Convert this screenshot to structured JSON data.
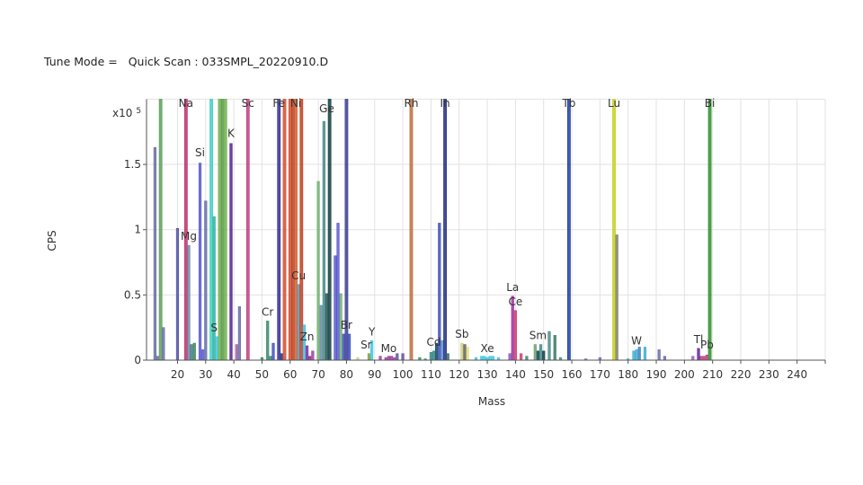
{
  "header": {
    "tune_mode_label": "Tune Mode =",
    "scan_label": "Quick Scan : 033SMPL_20220910.D"
  },
  "chart_data": {
    "type": "bar",
    "title": "",
    "xlabel": "Mass",
    "ylabel": "CPS",
    "y_multiplier": "x10",
    "y_multiplier_exp": "5",
    "xlim": [
      9,
      250
    ],
    "ylim": [
      0,
      2
    ],
    "xticks": [
      20,
      30,
      40,
      50,
      60,
      70,
      80,
      90,
      100,
      110,
      120,
      130,
      140,
      150,
      160,
      170,
      180,
      190,
      200,
      210,
      220,
      230,
      240
    ],
    "yticks": [
      {
        "v": 0,
        "label": "0"
      },
      {
        "v": 0.5,
        "label": "0.5"
      },
      {
        "v": 1,
        "label": "1"
      },
      {
        "v": 1.5,
        "label": "1.5"
      }
    ],
    "grid": true,
    "peaks": [
      {
        "m": 12,
        "v": 1.63,
        "c": "#6a6fa8"
      },
      {
        "m": 13,
        "v": 0.03,
        "c": "#6a6fa8"
      },
      {
        "m": 14,
        "v": 2.5,
        "c": "#5aa05a"
      },
      {
        "m": 15,
        "v": 0.25,
        "c": "#6a6fa8"
      },
      {
        "m": 20,
        "v": 1.01,
        "c": "#5555aa"
      },
      {
        "m": 23,
        "v": 2.5,
        "c": "#c0306a"
      },
      {
        "m": 24,
        "v": 0.88,
        "c": "#6a8aa8"
      },
      {
        "m": 25,
        "v": 0.12,
        "c": "#4a7a8a"
      },
      {
        "m": 26,
        "v": 0.13,
        "c": "#3a8a5a"
      },
      {
        "m": 28,
        "v": 1.51,
        "c": "#5a5ad0"
      },
      {
        "m": 29,
        "v": 0.08,
        "c": "#5a5ad0"
      },
      {
        "m": 30,
        "v": 1.22,
        "c": "#6a6fa8"
      },
      {
        "m": 32,
        "v": 2.5,
        "c": "#40d0c0"
      },
      {
        "m": 33,
        "v": 1.1,
        "c": "#30b0a0"
      },
      {
        "m": 34,
        "v": 0.18,
        "c": "#40c8e0"
      },
      {
        "m": 35,
        "v": 2.5,
        "c": "#70b050"
      },
      {
        "m": 36,
        "v": 2.5,
        "c": "#5a9a4a"
      },
      {
        "m": 37,
        "v": 2.5,
        "c": "#70b050"
      },
      {
        "m": 39,
        "v": 1.66,
        "c": "#502090"
      },
      {
        "m": 41,
        "v": 0.12,
        "c": "#a060a0"
      },
      {
        "m": 42,
        "v": 0.41,
        "c": "#6a6fa8"
      },
      {
        "m": 45,
        "v": 2.5,
        "c": "#c04080"
      },
      {
        "m": 50,
        "v": 0.02,
        "c": "#3a8a6a"
      },
      {
        "m": 52,
        "v": 0.3,
        "c": "#3a8a6a"
      },
      {
        "m": 53,
        "v": 0.03,
        "c": "#3a8a6a"
      },
      {
        "m": 54,
        "v": 0.13,
        "c": "#4050c0"
      },
      {
        "m": 56,
        "v": 2.5,
        "c": "#303090"
      },
      {
        "m": 57,
        "v": 0.05,
        "c": "#303090"
      },
      {
        "m": 58,
        "v": 2.5,
        "c": "#d05030"
      },
      {
        "m": 60,
        "v": 2.5,
        "c": "#d05030"
      },
      {
        "m": 61,
        "v": 2.5,
        "c": "#c04020"
      },
      {
        "m": 62,
        "v": 2.5,
        "c": "#d06030"
      },
      {
        "m": 63,
        "v": 0.58,
        "c": "#6090b0"
      },
      {
        "m": 64,
        "v": 2.5,
        "c": "#c04020"
      },
      {
        "m": 65,
        "v": 0.27,
        "c": "#40c0e0"
      },
      {
        "m": 66,
        "v": 0.11,
        "c": "#8030a0"
      },
      {
        "m": 67,
        "v": 0.03,
        "c": "#8030a0"
      },
      {
        "m": 68,
        "v": 0.07,
        "c": "#a040a0"
      },
      {
        "m": 70,
        "v": 1.37,
        "c": "#70b070"
      },
      {
        "m": 71,
        "v": 0.42,
        "c": "#6a8aa8"
      },
      {
        "m": 72,
        "v": 1.83,
        "c": "#4a8a8a"
      },
      {
        "m": 73,
        "v": 0.51,
        "c": "#2a5a5a"
      },
      {
        "m": 74,
        "v": 2.5,
        "c": "#104040"
      },
      {
        "m": 76,
        "v": 0.8,
        "c": "#5a5ad0"
      },
      {
        "m": 77,
        "v": 1.05,
        "c": "#5a5ad0"
      },
      {
        "m": 78,
        "v": 0.51,
        "c": "#70b070"
      },
      {
        "m": 79,
        "v": 0.2,
        "c": "#4050c0"
      },
      {
        "m": 80,
        "v": 2.5,
        "c": "#404090"
      },
      {
        "m": 81,
        "v": 0.2,
        "c": "#4050c0"
      },
      {
        "m": 84,
        "v": 0.02,
        "c": "#d0d080"
      },
      {
        "m": 88,
        "v": 0.05,
        "c": "#80a040"
      },
      {
        "m": 89,
        "v": 0.15,
        "c": "#40c8e0"
      },
      {
        "m": 92,
        "v": 0.03,
        "c": "#a040a0"
      },
      {
        "m": 94,
        "v": 0.02,
        "c": "#a040a0"
      },
      {
        "m": 95,
        "v": 0.03,
        "c": "#a040a0"
      },
      {
        "m": 96,
        "v": 0.03,
        "c": "#a040a0"
      },
      {
        "m": 97,
        "v": 0.02,
        "c": "#a040a0"
      },
      {
        "m": 98,
        "v": 0.05,
        "c": "#6050a0"
      },
      {
        "m": 100,
        "v": 0.05,
        "c": "#6050a0"
      },
      {
        "m": 103,
        "v": 2.5,
        "c": "#c07040"
      },
      {
        "m": 106,
        "v": 0.02,
        "c": "#3a8a6a"
      },
      {
        "m": 108,
        "v": 0.01,
        "c": "#3a8a6a"
      },
      {
        "m": 110,
        "v": 0.06,
        "c": "#3a8a8a"
      },
      {
        "m": 111,
        "v": 0.07,
        "c": "#3a8a8a"
      },
      {
        "m": 112,
        "v": 0.13,
        "c": "#104a5a"
      },
      {
        "m": 113,
        "v": 1.05,
        "c": "#4050c0"
      },
      {
        "m": 114,
        "v": 0.15,
        "c": "#6090d0"
      },
      {
        "m": 115,
        "v": 2.5,
        "c": "#203080"
      },
      {
        "m": 116,
        "v": 0.05,
        "c": "#3a6a6a"
      },
      {
        "m": 121,
        "v": 0.13,
        "c": "#d0d080"
      },
      {
        "m": 122,
        "v": 0.12,
        "c": "#606060"
      },
      {
        "m": 123,
        "v": 0.1,
        "c": "#e0e080"
      },
      {
        "m": 126,
        "v": 0.02,
        "c": "#40c8e0"
      },
      {
        "m": 128,
        "v": 0.03,
        "c": "#40c8e0"
      },
      {
        "m": 129,
        "v": 0.03,
        "c": "#40c8e0"
      },
      {
        "m": 130,
        "v": 0.02,
        "c": "#40c8e0"
      },
      {
        "m": 131,
        "v": 0.03,
        "c": "#40c8e0"
      },
      {
        "m": 132,
        "v": 0.03,
        "c": "#40c8e0"
      },
      {
        "m": 134,
        "v": 0.02,
        "c": "#40c8e0"
      },
      {
        "m": 138,
        "v": 0.05,
        "c": "#8060c0"
      },
      {
        "m": 139,
        "v": 0.49,
        "c": "#a030a0"
      },
      {
        "m": 140,
        "v": 0.38,
        "c": "#d04070"
      },
      {
        "m": 142,
        "v": 0.05,
        "c": "#d04070"
      },
      {
        "m": 144,
        "v": 0.03,
        "c": "#3a8a6a"
      },
      {
        "m": 147,
        "v": 0.12,
        "c": "#70a070"
      },
      {
        "m": 148,
        "v": 0.07,
        "c": "#104a5a"
      },
      {
        "m": 149,
        "v": 0.12,
        "c": "#4a8a8a"
      },
      {
        "m": 150,
        "v": 0.07,
        "c": "#104040"
      },
      {
        "m": 152,
        "v": 0.22,
        "c": "#4a8a8a"
      },
      {
        "m": 154,
        "v": 0.19,
        "c": "#3a7a6a"
      },
      {
        "m": 156,
        "v": 0.02,
        "c": "#4a8a8a"
      },
      {
        "m": 159,
        "v": 2.5,
        "c": "#2040a0"
      },
      {
        "m": 165,
        "v": 0.01,
        "c": "#8060c0"
      },
      {
        "m": 170,
        "v": 0.02,
        "c": "#8060c0"
      },
      {
        "m": 175,
        "v": 2.5,
        "c": "#c8d020"
      },
      {
        "m": 176,
        "v": 0.96,
        "c": "#808070"
      },
      {
        "m": 180,
        "v": 0.01,
        "c": "#40b0d0"
      },
      {
        "m": 182,
        "v": 0.07,
        "c": "#40b0d0"
      },
      {
        "m": 183,
        "v": 0.08,
        "c": "#40b0d0"
      },
      {
        "m": 184,
        "v": 0.1,
        "c": "#4080c0"
      },
      {
        "m": 186,
        "v": 0.1,
        "c": "#40b0d0"
      },
      {
        "m": 191,
        "v": 0.08,
        "c": "#6a6fa8"
      },
      {
        "m": 193,
        "v": 0.03,
        "c": "#6a6fa8"
      },
      {
        "m": 203,
        "v": 0.03,
        "c": "#a060b0"
      },
      {
        "m": 205,
        "v": 0.09,
        "c": "#6020a0"
      },
      {
        "m": 206,
        "v": 0.03,
        "c": "#c04080"
      },
      {
        "m": 207,
        "v": 0.03,
        "c": "#c04080"
      },
      {
        "m": 208,
        "v": 0.04,
        "c": "#c04080"
      },
      {
        "m": 209,
        "v": 2.5,
        "c": "#309030"
      }
    ],
    "labels": [
      {
        "text": "Na",
        "m": 23,
        "v": 1.92
      },
      {
        "text": "Mg",
        "m": 24,
        "v": 0.9
      },
      {
        "text": "Si",
        "m": 28,
        "v": 1.54
      },
      {
        "text": "S",
        "m": 33,
        "v": 0.2
      },
      {
        "text": "K",
        "m": 39,
        "v": 1.69
      },
      {
        "text": "Sc",
        "m": 45,
        "v": 1.92
      },
      {
        "text": "Cr",
        "m": 52,
        "v": 0.32
      },
      {
        "text": "Fe",
        "m": 56,
        "v": 1.92
      },
      {
        "text": "Ni",
        "m": 62,
        "v": 1.92
      },
      {
        "text": "Cu",
        "m": 63,
        "v": 0.6
      },
      {
        "text": "Zn",
        "m": 66,
        "v": 0.13
      },
      {
        "text": "Ge",
        "m": 73,
        "v": 1.88
      },
      {
        "text": "Br",
        "m": 80,
        "v": 0.22
      },
      {
        "text": "Sr",
        "m": 87,
        "v": 0.07
      },
      {
        "text": "Y",
        "m": 89,
        "v": 0.17
      },
      {
        "text": "Mo",
        "m": 95,
        "v": 0.04
      },
      {
        "text": "Rh",
        "m": 103,
        "v": 1.92
      },
      {
        "text": "Cd",
        "m": 111,
        "v": 0.09
      },
      {
        "text": "In",
        "m": 115,
        "v": 1.92
      },
      {
        "text": "Sb",
        "m": 121,
        "v": 0.15
      },
      {
        "text": "Xe",
        "m": 130,
        "v": 0.04
      },
      {
        "text": "La",
        "m": 139,
        "v": 0.51
      },
      {
        "text": "Ce",
        "m": 140,
        "v": 0.4
      },
      {
        "text": "Sm",
        "m": 148,
        "v": 0.14
      },
      {
        "text": "Tb",
        "m": 159,
        "v": 1.92
      },
      {
        "text": "Lu",
        "m": 175,
        "v": 1.92
      },
      {
        "text": "W",
        "m": 183,
        "v": 0.1
      },
      {
        "text": "Tl",
        "m": 205,
        "v": 0.11
      },
      {
        "text": "Pb",
        "m": 208,
        "v": 0.07
      },
      {
        "text": "Bi",
        "m": 209,
        "v": 1.92
      }
    ]
  }
}
